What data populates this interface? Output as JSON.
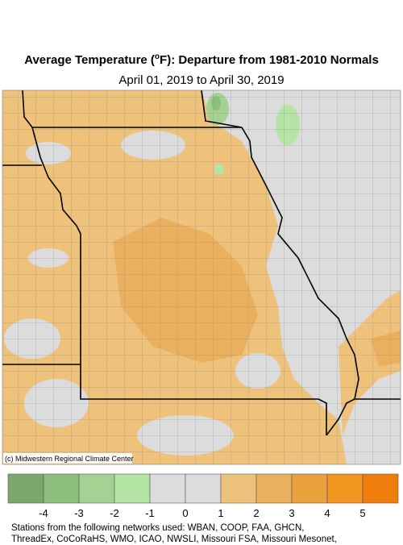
{
  "header": {
    "title_before": "Average Temperature (",
    "title_degree": "o",
    "title_after": "F): Departure from 1981-2010 Normals",
    "subtitle": "April 01, 2019 to April 30, 2019"
  },
  "map": {
    "credit": "(c) Midwestern Regional Climate Center"
  },
  "legend": {
    "colors": [
      "#7aa86a",
      "#8dbf7c",
      "#a3d293",
      "#b5e5a4",
      "#dcdcdc",
      "#dcdcdc",
      "#efc27c",
      "#ebb05e",
      "#e9a13e",
      "#f29420",
      "#ef7d0c"
    ],
    "ticks": [
      -4,
      -3,
      -2,
      -1,
      0,
      1,
      2,
      3,
      4,
      5
    ]
  },
  "footer": {
    "lines": [
      "Stations from the following networks used: WBAN, COOP, FAA, GHCN,",
      "ThreadEx, CoCoRaHS, WMO, ICAO, NWSLI, Missouri FSA, Missouri Mesonet,"
    ]
  }
}
